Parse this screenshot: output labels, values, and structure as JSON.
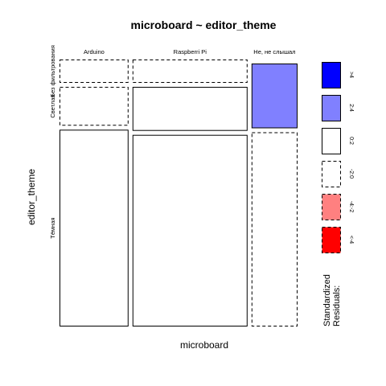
{
  "chart_data": {
    "type": "mosaic",
    "title": "microboard ~ editor_theme",
    "xlabel": "microboard",
    "ylabel": "editor_theme",
    "x_categories": [
      "Arduino",
      "Raspberri Pi",
      "Не, не слышал"
    ],
    "y_categories": [
      "Без фильтрования",
      "Светлая",
      "Тёмная"
    ],
    "column_shares": [
      0.3,
      0.5,
      0.2
    ],
    "cells": [
      {
        "x": "Arduino",
        "y": "Без фильтрования",
        "share": 0.09,
        "residual_class": "<-2:0",
        "color": "#ffffff",
        "dashed": true
      },
      {
        "x": "Arduino",
        "y": "Светлая",
        "share": 0.15,
        "residual_class": "<-2:0",
        "color": "#ffffff",
        "dashed": true
      },
      {
        "x": "Arduino",
        "y": "Тёмная",
        "share": 0.76,
        "residual_class": "0:2",
        "color": "#ffffff",
        "dashed": false
      },
      {
        "x": "Raspberri Pi",
        "y": "Без фильтрования",
        "share": 0.09,
        "residual_class": "<-2:0",
        "color": "#ffffff",
        "dashed": true
      },
      {
        "x": "Raspberri Pi",
        "y": "Светлая",
        "share": 0.17,
        "residual_class": "0:2",
        "color": "#ffffff",
        "dashed": false
      },
      {
        "x": "Raspberri Pi",
        "y": "Тёмная",
        "share": 0.74,
        "residual_class": "0:2",
        "color": "#ffffff",
        "dashed": false
      },
      {
        "x": "Не, не слышал",
        "y": "Без фильтрования",
        "share": 0.0,
        "residual_class": "<-2:0",
        "color": "#ffffff",
        "dashed": true
      },
      {
        "x": "Не, не слышал",
        "y": "Светлая",
        "share": 0.25,
        "residual_class": "2:4",
        "color": "#8080ff",
        "dashed": false
      },
      {
        "x": "Не, не слышал",
        "y": "Тёмная",
        "share": 0.75,
        "residual_class": "<-2:0",
        "color": "#ffffff",
        "dashed": true
      }
    ],
    "legend": {
      "title": "Standardized Residuals:",
      "placement": "right",
      "items": [
        {
          "label": ">4",
          "color": "#0000ff",
          "dashed": false
        },
        {
          "label": "2:4",
          "color": "#8080ff",
          "dashed": false
        },
        {
          "label": "0:2",
          "color": "#ffffff",
          "dashed": false
        },
        {
          "label": "-2:0",
          "color": "#ffffff",
          "dashed": true
        },
        {
          "label": "-4:-2",
          "color": "#ff8080",
          "dashed": true
        },
        {
          "label": "<-4",
          "color": "#ff0000",
          "dashed": true
        }
      ]
    }
  }
}
